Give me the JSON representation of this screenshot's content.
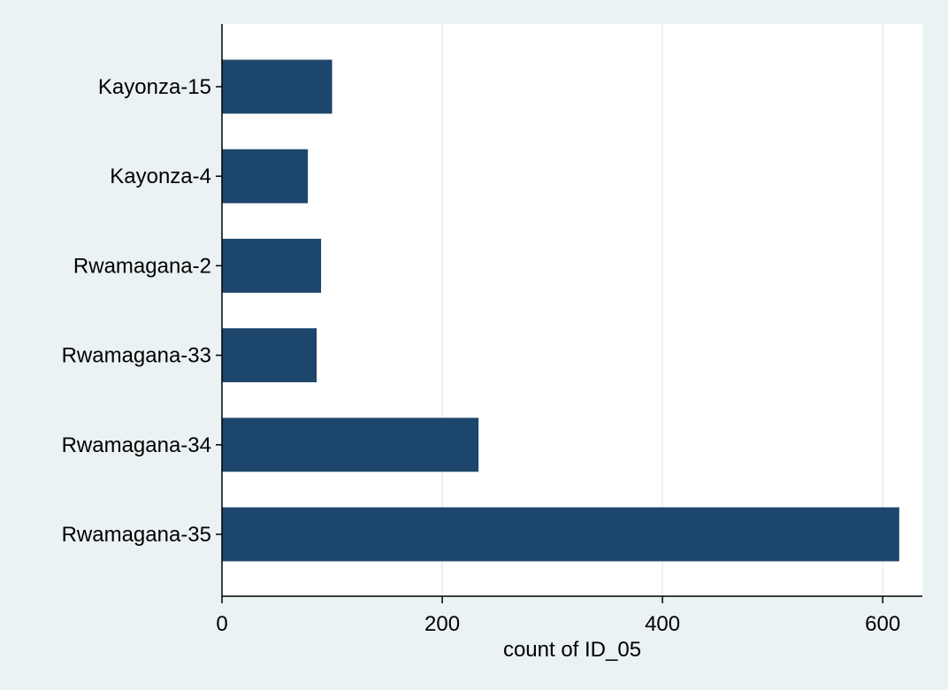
{
  "chart_data": {
    "type": "bar",
    "orientation": "horizontal",
    "categories": [
      "Kayonza-15",
      "Kayonza-4",
      "Rwamagana-2",
      "Rwamagana-33",
      "Rwamagana-34",
      "Rwamagana-35"
    ],
    "values": [
      100,
      78,
      90,
      86,
      233,
      615
    ],
    "xlabel": "count of ID_05",
    "ylabel": "",
    "xlim": [
      0,
      636
    ],
    "xticks": [
      0,
      200,
      400,
      600
    ],
    "grid": "vertical",
    "legend": "none",
    "colors": {
      "bar": "#1c466b",
      "background": "#eaf2f3",
      "plot_background": "#ffffff",
      "grid": "#eaf2f3",
      "axis": "#000000"
    }
  }
}
